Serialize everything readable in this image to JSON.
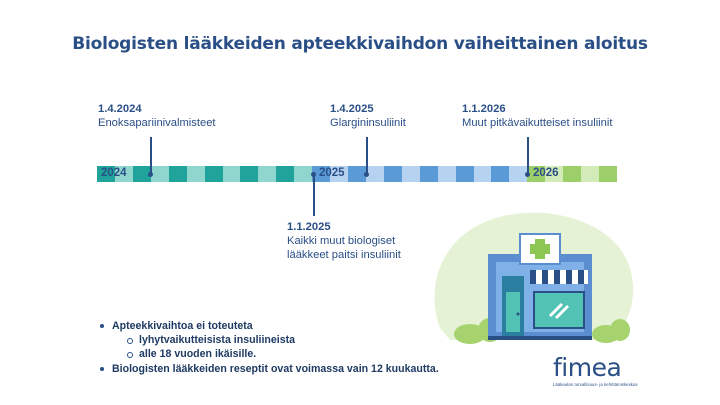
{
  "title": "Biologisten lääkkeiden apteekkivaihdon vaiheittainen aloitus",
  "events": [
    {
      "date": "1.4.2024",
      "desc": "Enoksapariinivalmisteet"
    },
    {
      "date": "1.1.2025",
      "desc_lines": [
        "Kaikki muut biologiset",
        "lääkkeet paitsi insuliinit"
      ]
    },
    {
      "date": "1.4.2025",
      "desc": "Glargininsuliinit"
    },
    {
      "date": "1.1.2026",
      "desc": "Muut pitkävaikutteiset insuliinit"
    }
  ],
  "timeline": {
    "years": [
      "2024",
      "2025",
      "2026"
    ],
    "colors": {
      "teal": "#1fa39a",
      "teal_light": "#8fd6cf",
      "blue": "#5a9ad6",
      "blue_light": "#b5d3f0",
      "green": "#9ccf6a",
      "green_light": "#d3ebb8"
    }
  },
  "bullets": {
    "item1": "Apteekkivaihtoa ei toteuteta",
    "sub1": "lyhytvaikutteisista insuliineista",
    "sub2": "alle 18 vuoden ikäisille.",
    "item2": "Biologisten lääkkeiden reseptit ovat voimassa vain 12 kuukautta."
  },
  "logo": {
    "word": "fimea",
    "tagline": "Lääkealan turvallisuus- ja kehittämiskeskus"
  },
  "illustration": {
    "icon": "pharmacy-building-icon"
  }
}
